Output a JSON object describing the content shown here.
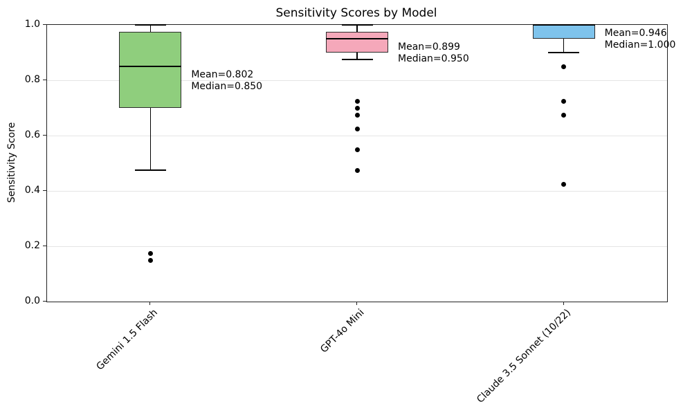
{
  "chart": {
    "background": "#ffffff"
  },
  "chart_data": {
    "type": "boxplot",
    "title": "Sensitivity Scores by Model",
    "ylabel": "Sensitivity Score",
    "xlabel": "",
    "ylim": [
      0.0,
      1.0
    ],
    "yticks": [
      0.0,
      0.2,
      0.4,
      0.6,
      0.8,
      1.0
    ],
    "ytick_labels": [
      "0.0",
      "0.2",
      "0.4",
      "0.6",
      "0.8",
      "1.0"
    ],
    "grid": "horizontal-light",
    "legend": "none",
    "categories": [
      "Gemini 1.5 Flash",
      "GPT-4o Mini",
      "Claude 3.5 Sonnet (10/22)"
    ],
    "colors": {
      "edge": "#2b2b2b",
      "whisker": "#000000",
      "flier": "#000000",
      "grid": "#e5e5e5",
      "spine": "#222222"
    },
    "series": [
      {
        "model": "Gemini 1.5 Flash",
        "box_color": "#8FCE7D",
        "whisker_low": 0.475,
        "q1": 0.7,
        "median": 0.85,
        "q3": 0.975,
        "whisker_high": 1.0,
        "outliers": [
          0.175,
          0.15
        ],
        "mean": 0.802,
        "annotation": [
          "Mean=0.802",
          "Median=0.850"
        ]
      },
      {
        "model": "GPT-4o Mini",
        "box_color": "#F5A8BA",
        "whisker_low": 0.875,
        "q1": 0.9,
        "median": 0.95,
        "q3": 0.975,
        "whisker_high": 1.0,
        "outliers": [
          0.725,
          0.7,
          0.675,
          0.625,
          0.55,
          0.475
        ],
        "mean": 0.899,
        "annotation": [
          "Mean=0.899",
          "Median=0.950"
        ]
      },
      {
        "model": "Claude 3.5 Sonnet (10/22)",
        "box_color": "#7EC3EC",
        "whisker_low": 0.9,
        "q1": 0.95,
        "median": 1.0,
        "q3": 1.0,
        "whisker_high": 1.0,
        "outliers": [
          0.85,
          0.725,
          0.675,
          0.425
        ],
        "mean": 0.946,
        "annotation": [
          "Mean=0.946",
          "Median=1.000"
        ]
      }
    ]
  }
}
